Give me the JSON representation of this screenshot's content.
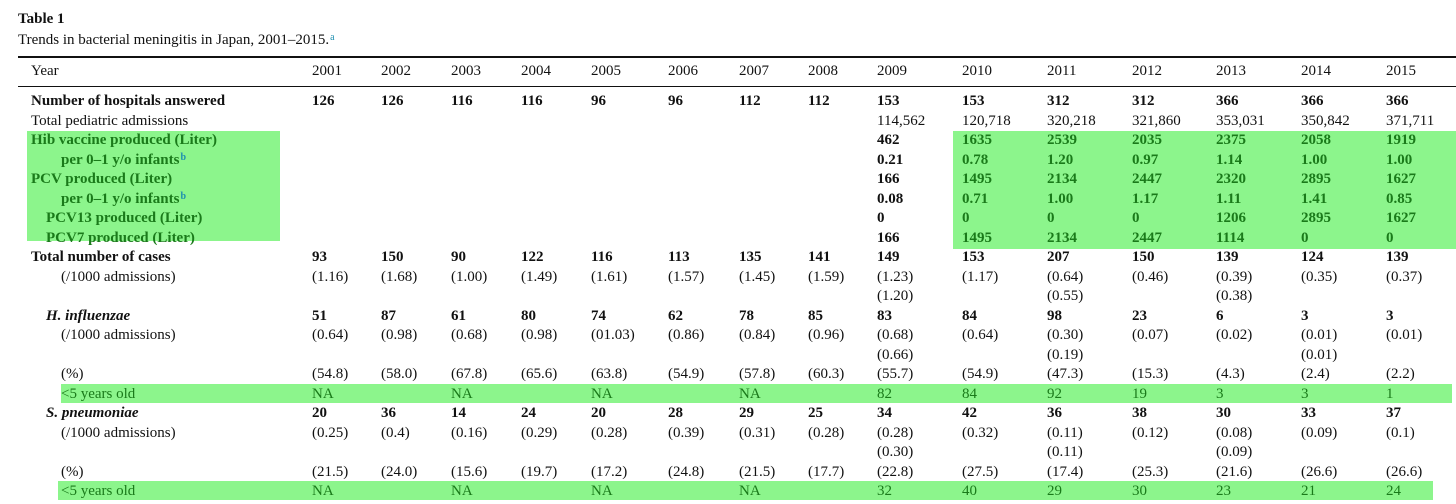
{
  "table_label": "Table 1",
  "caption": "Trends in bacterial meningitis in Japan, 2001–2015.",
  "caption_footnote": "a",
  "header": {
    "label": "Year",
    "years": [
      "2001",
      "2002",
      "2003",
      "2004",
      "2005",
      "2006",
      "2007",
      "2008",
      "2009",
      "2010",
      "2011",
      "2012",
      "2013",
      "2014",
      "2015"
    ]
  },
  "rows": [
    {
      "label": "Number of hospitals answered",
      "indent": 0,
      "bold": true,
      "cells": [
        "126",
        "126",
        "116",
        "116",
        "96",
        "96",
        "112",
        "112",
        "153",
        "153",
        "312",
        "312",
        "366",
        "366",
        "366"
      ]
    },
    {
      "label": "Total pediatric admissions",
      "indent": 0,
      "cells": [
        "",
        "",
        "",
        "",
        "",
        "",
        "",
        "",
        "114,562",
        "120,718",
        "320,218",
        "321,860",
        "353,031",
        "350,842",
        "371,711"
      ]
    },
    {
      "label": "Hib vaccine produced (Liter)",
      "indent": 0,
      "bold": true,
      "green": true,
      "cells": [
        "",
        "",
        "",
        "",
        "",
        "",
        "",
        "",
        "462",
        "1635",
        "2539",
        "2035",
        "2375",
        "2058",
        "1919"
      ]
    },
    {
      "label": "per 0–1 y/o infants",
      "footnote": "b",
      "indent": 2,
      "bold": true,
      "green": true,
      "cells": [
        "",
        "",
        "",
        "",
        "",
        "",
        "",
        "",
        "0.21",
        "0.78",
        "1.20",
        "0.97",
        "1.14",
        "1.00",
        "1.00"
      ]
    },
    {
      "label": "PCV produced (Liter)",
      "indent": 0,
      "bold": true,
      "green": true,
      "cells": [
        "",
        "",
        "",
        "",
        "",
        "",
        "",
        "",
        "166",
        "1495",
        "2134",
        "2447",
        "2320",
        "2895",
        "1627"
      ]
    },
    {
      "label": "per 0–1 y/o infants",
      "footnote": "b",
      "indent": 2,
      "bold": true,
      "green": true,
      "cells": [
        "",
        "",
        "",
        "",
        "",
        "",
        "",
        "",
        "0.08",
        "0.71",
        "1.00",
        "1.17",
        "1.11",
        "1.41",
        "0.85"
      ]
    },
    {
      "label": "PCV13 produced (Liter)",
      "indent": 1,
      "bold": true,
      "green": true,
      "cells": [
        "",
        "",
        "",
        "",
        "",
        "",
        "",
        "",
        "0",
        "0",
        "0",
        "0",
        "1206",
        "2895",
        "1627"
      ]
    },
    {
      "label": "PCV7 produced (Liter)",
      "indent": 1,
      "bold": true,
      "green": true,
      "cells": [
        "",
        "",
        "",
        "",
        "",
        "",
        "",
        "",
        "166",
        "1495",
        "2134",
        "2447",
        "1114",
        "0",
        "0"
      ]
    },
    {
      "label": "Total number of cases",
      "indent": 0,
      "bold": true,
      "cells": [
        "93",
        "150",
        "90",
        "122",
        "116",
        "113",
        "135",
        "141",
        "149",
        "153",
        "207",
        "150",
        "139",
        "124",
        "139"
      ]
    },
    {
      "label": "(/1000 admissions)",
      "indent": 2,
      "cells": [
        "(1.16)",
        "(1.68)",
        "(1.00)",
        "(1.49)",
        "(1.61)",
        "(1.57)",
        "(1.45)",
        "(1.59)",
        "(1.23)",
        "(1.17)",
        "(0.64)",
        "(0.46)",
        "(0.39)",
        "(0.35)",
        "(0.37)"
      ]
    },
    {
      "label": "",
      "cells": [
        "",
        "",
        "",
        "",
        "",
        "",
        "",
        "",
        "(1.20)",
        "",
        "(0.55)",
        "",
        "(0.38)",
        "",
        ""
      ]
    },
    {
      "label": "H. influenzae",
      "indent": 1,
      "bold": true,
      "italic": true,
      "cells": [
        "51",
        "87",
        "61",
        "80",
        "74",
        "62",
        "78",
        "85",
        "83",
        "84",
        "98",
        "23",
        "6",
        "3",
        "3"
      ]
    },
    {
      "label": "(/1000 admissions)",
      "indent": 2,
      "cells": [
        "(0.64)",
        "(0.98)",
        "(0.68)",
        "(0.98)",
        "(01.03)",
        "(0.86)",
        "(0.84)",
        "(0.96)",
        "(0.68)",
        "(0.64)",
        "(0.30)",
        "(0.07)",
        "(0.02)",
        "(0.01)",
        "(0.01)"
      ]
    },
    {
      "label": "",
      "cells": [
        "",
        "",
        "",
        "",
        "",
        "",
        "",
        "",
        "(0.66)",
        "",
        "(0.19)",
        "",
        "",
        "(0.01)",
        ""
      ]
    },
    {
      "label": "(%)",
      "indent": 2,
      "cells": [
        "(54.8)",
        "(58.0)",
        "(67.8)",
        "(65.6)",
        "(63.8)",
        "(54.9)",
        "(57.8)",
        "(60.3)",
        "(55.7)",
        "(54.9)",
        "(47.3)",
        "(15.3)",
        "(4.3)",
        "(2.4)",
        "(2.2)"
      ]
    },
    {
      "label": "<5 years old",
      "indent": 2,
      "green": true,
      "cells": [
        "NA",
        "",
        "NA",
        "",
        "NA",
        "",
        "NA",
        "",
        "82",
        "84",
        "92",
        "19",
        "3",
        "3",
        "1"
      ]
    },
    {
      "label": "S. pneumoniae",
      "indent": 1,
      "bold": true,
      "italic": true,
      "cells": [
        "20",
        "36",
        "14",
        "24",
        "20",
        "28",
        "29",
        "25",
        "34",
        "42",
        "36",
        "38",
        "30",
        "33",
        "37"
      ]
    },
    {
      "label": "(/1000 admissions)",
      "indent": 2,
      "cells": [
        "(0.25)",
        "(0.4)",
        "(0.16)",
        "(0.29)",
        "(0.28)",
        "(0.39)",
        "(0.31)",
        "(0.28)",
        "(0.28)",
        "(0.32)",
        "(0.11)",
        "(0.12)",
        "(0.08)",
        "(0.09)",
        "(0.1)"
      ]
    },
    {
      "label": "",
      "cells": [
        "",
        "",
        "",
        "",
        "",
        "",
        "",
        "",
        "(0.30)",
        "",
        "(0.11)",
        "",
        "(0.09)",
        "",
        ""
      ]
    },
    {
      "label": "(%)",
      "indent": 2,
      "cells": [
        "(21.5)",
        "(24.0)",
        "(15.6)",
        "(19.7)",
        "(17.2)",
        "(24.8)",
        "(21.5)",
        "(17.7)",
        "(22.8)",
        "(27.5)",
        "(17.4)",
        "(25.3)",
        "(21.6)",
        "(26.6)",
        "(26.6)"
      ]
    },
    {
      "label": "<5 years old",
      "indent": 2,
      "green": true,
      "cells": [
        "NA",
        "",
        "NA",
        "",
        "NA",
        "",
        "NA",
        "",
        "32",
        "40",
        "29",
        "30",
        "23",
        "21",
        "24"
      ]
    }
  ],
  "colors": {
    "highlight": "#8cf58c",
    "highlight_text": "#1a7a1a",
    "footnote_link": "#1f8fb0"
  }
}
